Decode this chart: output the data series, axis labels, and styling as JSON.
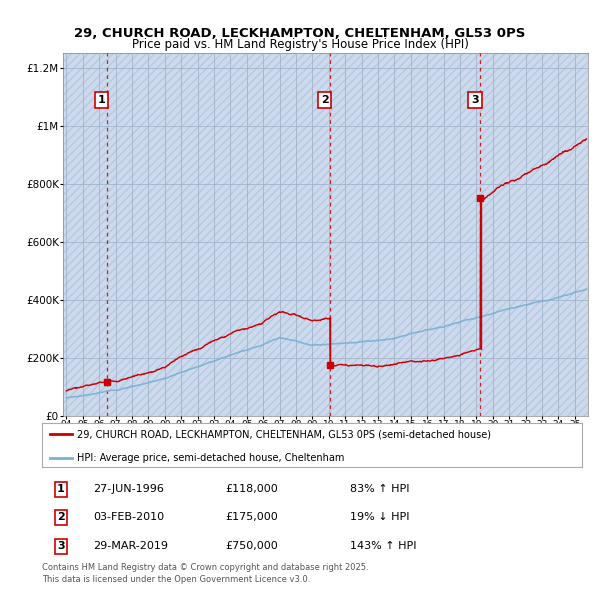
{
  "title1": "29, CHURCH ROAD, LECKHAMPTON, CHELTENHAM, GL53 0PS",
  "title2": "Price paid vs. HM Land Registry's House Price Index (HPI)",
  "background_color": "#ffffff",
  "plot_bg_color": "#dce8f5",
  "grid_color": "#b0c4d8",
  "property_color": "#cc0000",
  "hpi_color": "#7ab0d4",
  "transactions": [
    {
      "date_num": 1996.49,
      "price": 118000,
      "label": "1",
      "date_str": "27-JUN-1996"
    },
    {
      "date_num": 2010.09,
      "price": 175000,
      "label": "2",
      "date_str": "03-FEB-2010"
    },
    {
      "date_num": 2019.24,
      "price": 750000,
      "label": "3",
      "date_str": "29-MAR-2019"
    }
  ],
  "legend_property": "29, CHURCH ROAD, LECKHAMPTON, CHELTENHAM, GL53 0PS (semi-detached house)",
  "legend_hpi": "HPI: Average price, semi-detached house, Cheltenham",
  "table_rows": [
    {
      "label": "1",
      "date": "27-JUN-1996",
      "price": "£118,000",
      "pct": "83% ↑ HPI"
    },
    {
      "label": "2",
      "date": "03-FEB-2010",
      "price": "£175,000",
      "pct": "19% ↓ HPI"
    },
    {
      "label": "3",
      "date": "29-MAR-2019",
      "price": "£750,000",
      "pct": "143% ↑ HPI"
    }
  ],
  "footnote1": "Contains HM Land Registry data © Crown copyright and database right 2025.",
  "footnote2": "This data is licensed under the Open Government Licence v3.0.",
  "ylim": [
    0,
    1250000
  ],
  "xlim_start": 1993.8,
  "xlim_end": 2025.8
}
